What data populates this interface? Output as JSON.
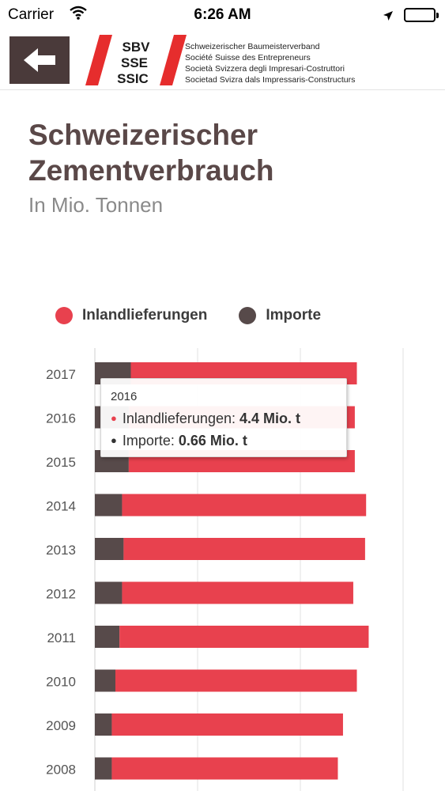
{
  "status_bar": {
    "carrier": "Carrier",
    "time": "6:26 AM"
  },
  "header": {
    "logo_lines": [
      "SBV",
      "SSE",
      "SSIC"
    ],
    "org_names": [
      "Schweizerischer Baumeisterverband",
      "Société Suisse des Entrepreneurs",
      "Società Svizzera degli Impresari-Costruttori",
      "Societad Svizra dals Impressaris-Constructurs"
    ]
  },
  "colors": {
    "inland": "#e8414e",
    "import": "#574a4a",
    "header_dark": "#4a3a3a",
    "title": "#5a4848"
  },
  "tooltip": {
    "year": "2016",
    "rows": [
      {
        "label": "Inlandlieferungen: ",
        "value": "4.4 Mio. t",
        "color": "#e8414e"
      },
      {
        "label": "Importe: ",
        "value": "0.66 Mio. t",
        "color": "#333333"
      }
    ]
  },
  "chart_data": {
    "type": "bar",
    "orientation": "horizontal",
    "stacked": true,
    "title": "Schweizerischer Zementverbrauch",
    "subtitle": "In Mio. Tonnen",
    "categories": [
      "2017",
      "2016",
      "2015",
      "2014",
      "2013",
      "2012",
      "2011",
      "2010",
      "2009",
      "2008"
    ],
    "series": [
      {
        "name": "Importe",
        "color": "#574a4a",
        "values": [
          0.7,
          0.66,
          0.66,
          0.53,
          0.56,
          0.53,
          0.48,
          0.4,
          0.33,
          0.33
        ]
      },
      {
        "name": "Inlandlieferungen",
        "color": "#e8414e",
        "values": [
          4.4,
          4.4,
          4.4,
          4.75,
          4.7,
          4.5,
          4.85,
          4.7,
          4.5,
          4.4
        ]
      }
    ],
    "xlim": [
      0,
      6
    ],
    "grid": true,
    "legend": "top"
  }
}
